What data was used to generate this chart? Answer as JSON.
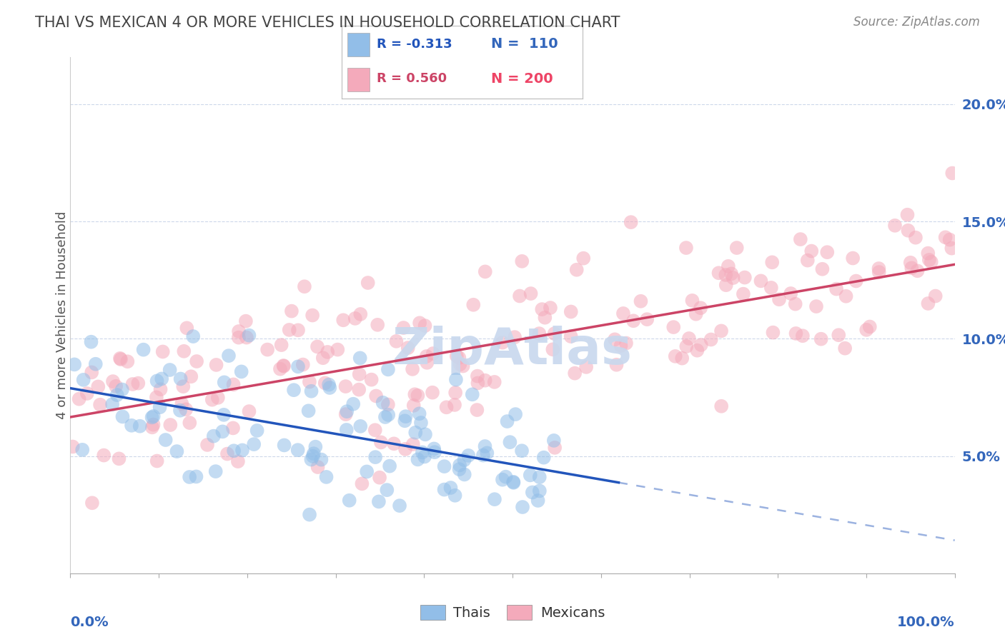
{
  "title": "THAI VS MEXICAN 4 OR MORE VEHICLES IN HOUSEHOLD CORRELATION CHART",
  "source": "Source: ZipAtlas.com",
  "ylabel": "4 or more Vehicles in Household",
  "xlim": [
    0,
    100
  ],
  "ylim": [
    0,
    22
  ],
  "blue_color": "#92BEE8",
  "pink_color": "#F4AABB",
  "trend_blue_color": "#2255BB",
  "trend_pink_color": "#CC4466",
  "watermark_color": "#C8D8EE",
  "background_color": "#FFFFFF",
  "grid_color": "#C8D4E8",
  "title_color": "#444444",
  "source_color": "#888888",
  "axis_label_color": "#3366BB",
  "blue_seed": 12345,
  "pink_seed": 67890,
  "n_blue": 110,
  "n_pink": 200,
  "blue_x_max": 55,
  "blue_intercept": 8.0,
  "blue_slope": -0.07,
  "blue_noise": 1.6,
  "pink_x_max": 100,
  "pink_intercept": 7.0,
  "pink_slope": 0.065,
  "pink_noise": 1.8,
  "solid_end": 62,
  "dash_start": 62,
  "dash_end": 100
}
